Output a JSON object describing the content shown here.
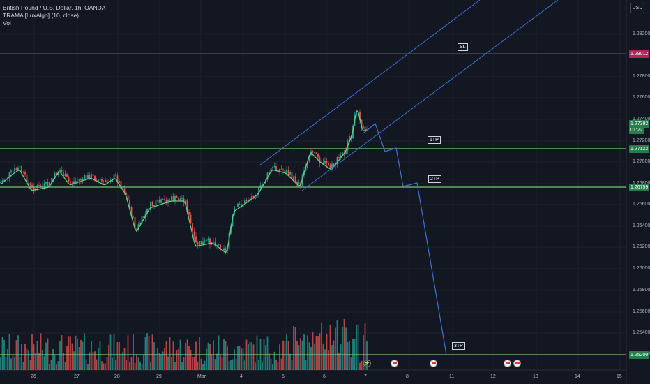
{
  "legend": {
    "symbol": "British Pound / U.S. Dollar, 1h, OANDA",
    "indicator": "TRAMA [LuxAlgo] (10, close)",
    "volume": "Vol"
  },
  "currency_button": "USD",
  "price_axis": [
    "1.28200",
    "1.27800",
    "1.27600",
    "1.27400",
    "1.27200",
    "1.27000",
    "1.26800",
    "1.26600",
    "1.26400",
    "1.26200",
    "1.26000",
    "1.25800",
    "1.25600",
    "1.25400",
    "1.25200"
  ],
  "time_axis": [
    "26",
    "27",
    "28",
    "29",
    "Mar",
    "4",
    "5",
    "6",
    "7",
    "8",
    "11",
    "12",
    "13",
    "14",
    "15"
  ],
  "price_badges": [
    {
      "label": "1.28012",
      "color": "#b2255b"
    },
    {
      "label": "1.27392",
      "color": "#2a7a4b"
    },
    {
      "label": "01:22",
      "color": "#2a7a4b"
    },
    {
      "label": "1.27122",
      "color": "#2a7a4b"
    },
    {
      "label": "1.26759",
      "color": "#2a7a4b"
    },
    {
      "label": "1.25200",
      "color": "#2a7a4b"
    }
  ],
  "annotations": {
    "sl": "SL",
    "tp1": "1TP",
    "tp2": "2TP",
    "tp3": "3TP"
  },
  "colors": {
    "up": "#26a69a",
    "down": "#ef5350",
    "sl_line": "#b2255b",
    "tp_line": "#7cc47c",
    "projection": "#3d72d8",
    "channel": "#3d6fd6",
    "trama": "#6ccf7d"
  },
  "events": [
    "lightning-icon",
    "flag-icon",
    "flag-icon",
    "flag-icon",
    "flag-icon"
  ]
}
